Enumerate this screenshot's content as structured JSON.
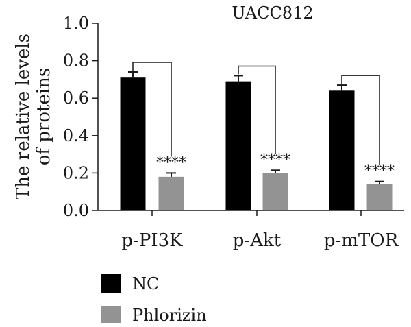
{
  "chart_data": {
    "type": "bar",
    "title": "UACC812",
    "ylabel_lines": [
      "The relative levels",
      "of proteins"
    ],
    "xlabel": "",
    "ylim": [
      0,
      1.0
    ],
    "yticks": [
      "0.0",
      "0.2",
      "0.4",
      "0.6",
      "0.8",
      "1.0"
    ],
    "categories": [
      "p-PI3K",
      "p-Akt",
      "p-mTOR"
    ],
    "series": [
      {
        "name": "NC",
        "color": "#000000",
        "values": [
          0.71,
          0.69,
          0.64
        ],
        "errors": [
          0.03,
          0.03,
          0.03
        ]
      },
      {
        "name": "Phlorizin",
        "color": "#939393",
        "values": [
          0.18,
          0.2,
          0.14
        ],
        "errors": [
          0.02,
          0.015,
          0.015
        ]
      }
    ],
    "significance": [
      "****",
      "****",
      "****"
    ],
    "legend_position": "bottom-left"
  }
}
